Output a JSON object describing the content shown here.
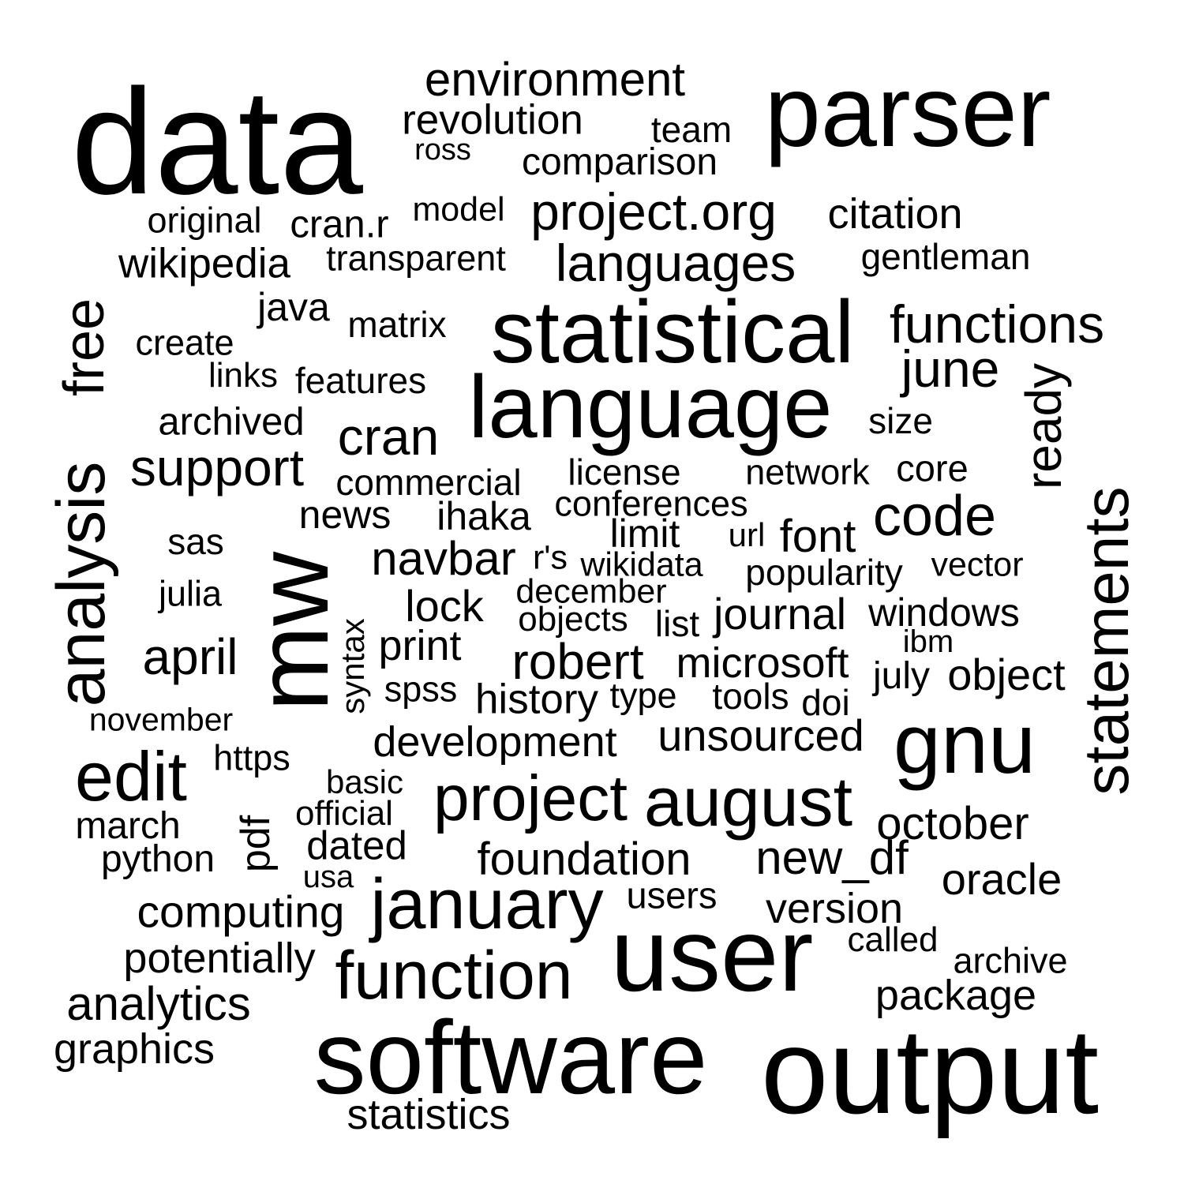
{
  "text_color": "#000000",
  "background": "#ffffff",
  "words": [
    "data",
    "parser",
    "environment",
    "revolution",
    "team",
    "ross",
    "comparison",
    "original",
    "cran.r",
    "model",
    "project.org",
    "citation",
    "wikipedia",
    "transparent",
    "languages",
    "gentleman",
    "java",
    "matrix",
    "statistical",
    "functions",
    "create",
    "free",
    "analysis",
    "links",
    "features",
    "june",
    "language",
    "ready",
    "archived",
    "size",
    "cran",
    "support",
    "commercial",
    "license",
    "network",
    "core",
    "statements",
    "news",
    "ihaka",
    "conferences",
    "code",
    "limit",
    "url",
    "font",
    "sas",
    "mw",
    "navbar",
    "r's",
    "wikidata",
    "popularity",
    "vector",
    "december",
    "julia",
    "lock",
    "objects",
    "list",
    "journal",
    "windows",
    "syntax",
    "print",
    "ibm",
    "april",
    "robert",
    "microsoft",
    "july",
    "object",
    "spss",
    "history",
    "type",
    "tools",
    "doi",
    "november",
    "development",
    "unsourced",
    "gnu",
    "edit",
    "https",
    "basic",
    "project",
    "august",
    "october",
    "march",
    "official",
    "pdf",
    "dated",
    "python",
    "usa",
    "foundation",
    "new_df",
    "oracle",
    "january",
    "users",
    "computing",
    "version",
    "called",
    "user",
    "potentially",
    "archive",
    "function",
    "analytics",
    "package",
    "graphics",
    "software",
    "output",
    "statistics"
  ]
}
